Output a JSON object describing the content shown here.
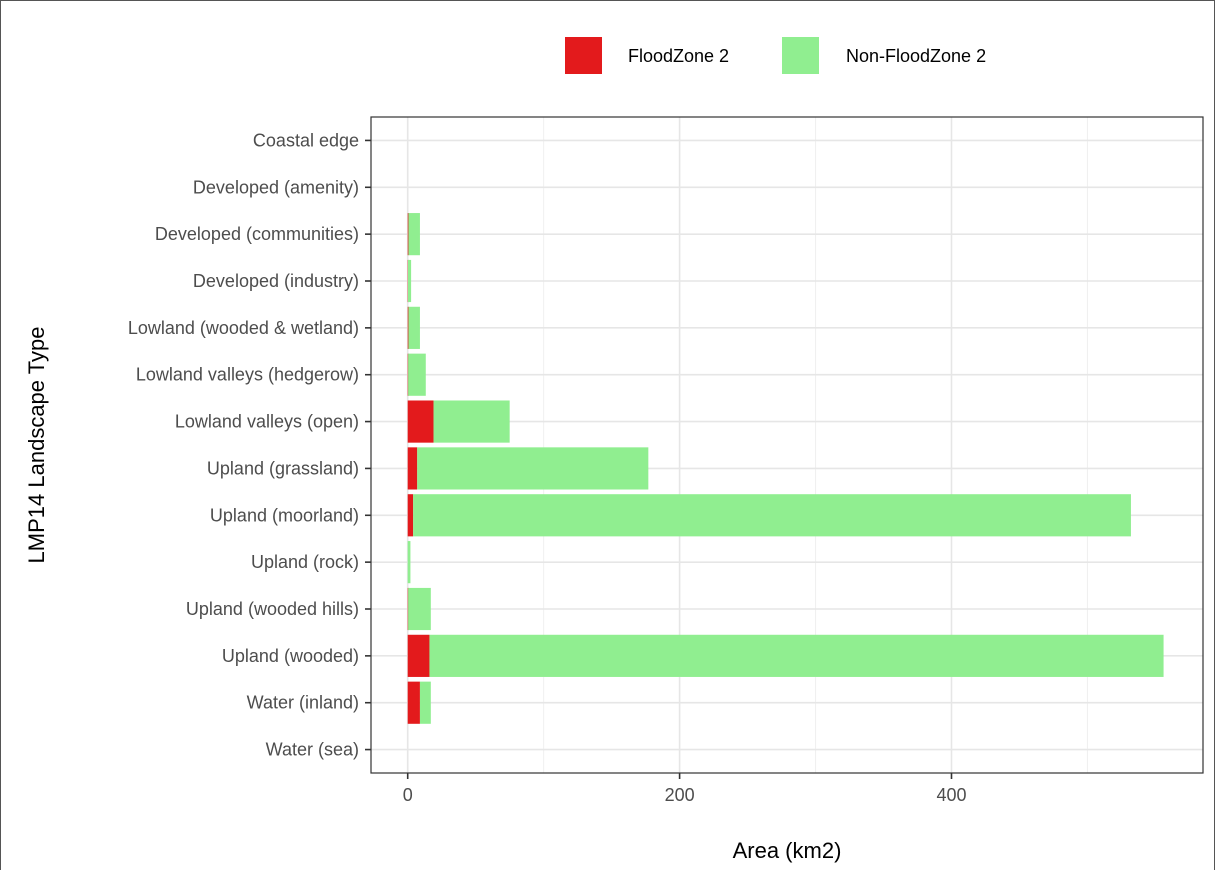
{
  "chart_data": {
    "type": "bar",
    "orientation": "horizontal",
    "stacked": true,
    "xlabel": "Area (km2)",
    "ylabel": "LMP14 Landscape Type",
    "xlim": [
      -27,
      585
    ],
    "x_ticks": [
      0,
      200,
      400
    ],
    "x_tick_labels": [
      "0",
      "200",
      "400"
    ],
    "grid": true,
    "legend_position": "top",
    "categories": [
      "Coastal edge",
      "Developed (amenity)",
      "Developed (communities)",
      "Developed (industry)",
      "Lowland (wooded & wetland)",
      "Lowland valleys (hedgerow)",
      "Lowland valleys (open)",
      "Upland (grassland)",
      "Upland (moorland)",
      "Upland (rock)",
      "Upland (wooded hills)",
      "Upland (wooded)",
      "Water (inland)",
      "Water (sea)"
    ],
    "series": [
      {
        "name": "FloodZone 2",
        "color": "#e31a1c",
        "values": [
          0,
          0,
          0.5,
          0.2,
          0.5,
          0.3,
          19,
          7,
          4,
          0,
          0.3,
          16,
          9,
          0
        ]
      },
      {
        "name": "Non-FloodZone 2",
        "color": "#90ee90",
        "values": [
          0,
          0,
          8.5,
          2.3,
          8.5,
          13,
          56,
          170,
          528,
          2,
          16.7,
          540,
          8,
          0
        ]
      }
    ]
  }
}
